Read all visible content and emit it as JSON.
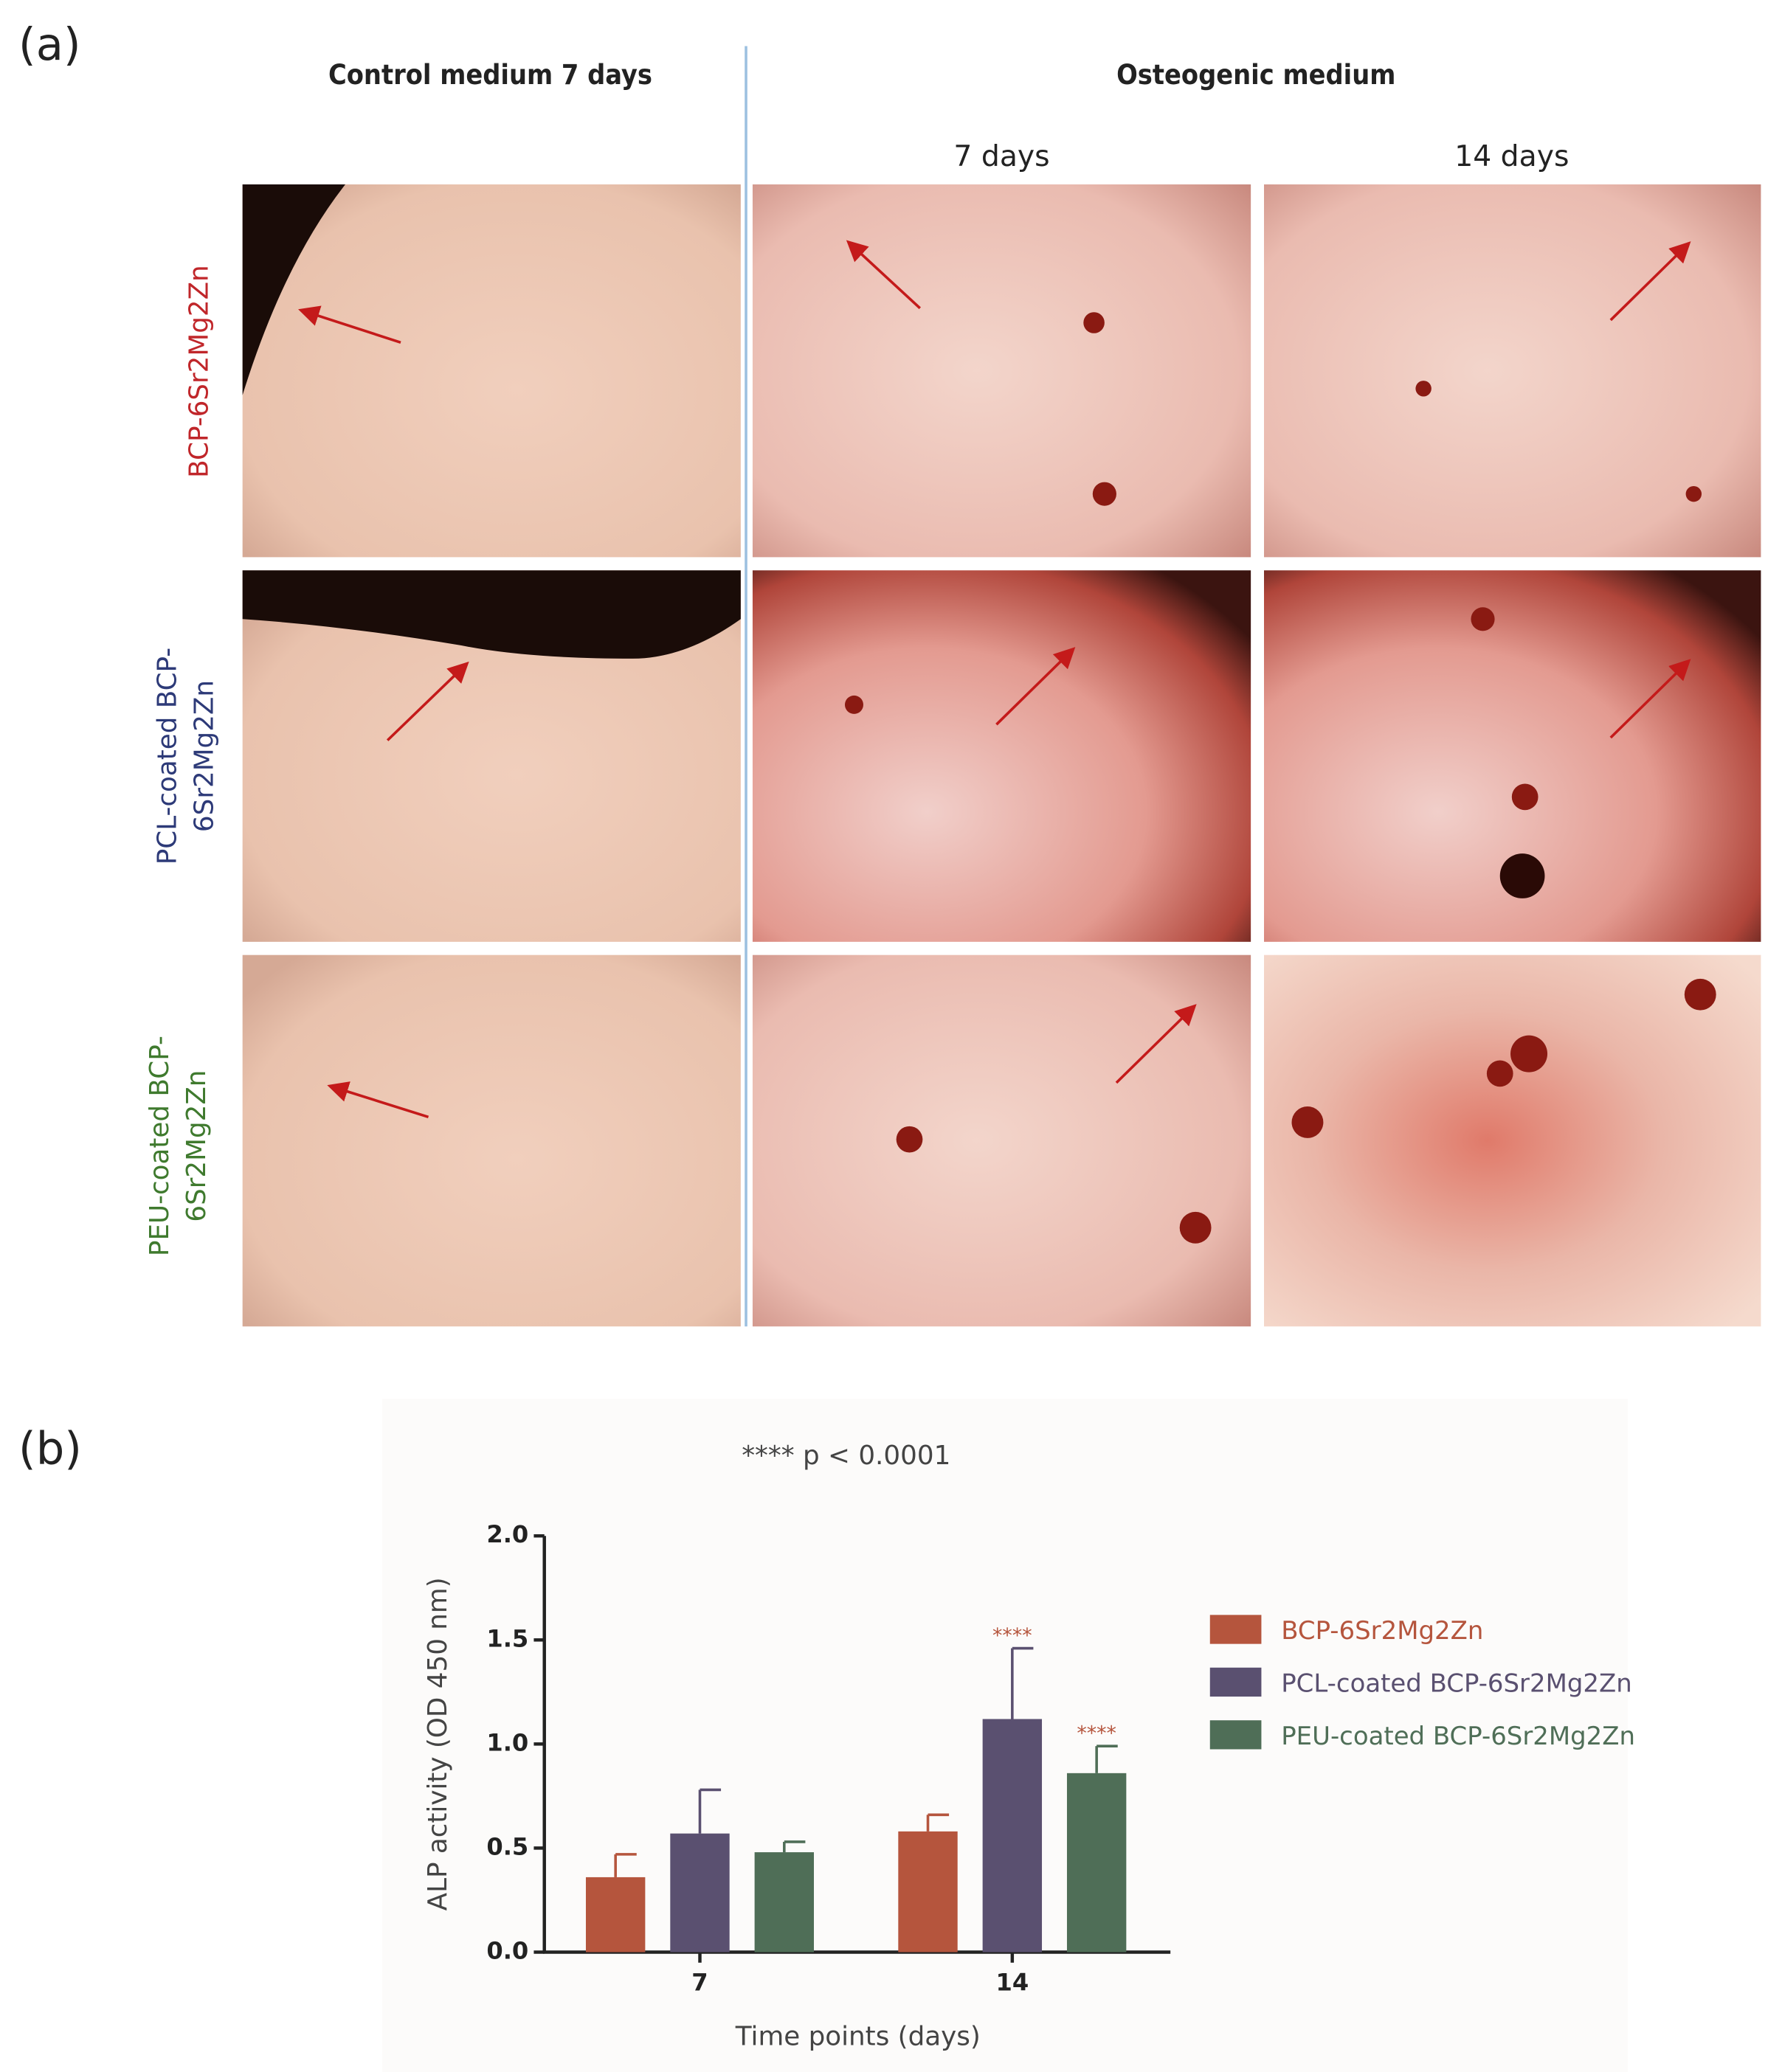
{
  "panel_a": {
    "label": "(a)",
    "column_headers": [
      "Control medium 7 days",
      "Osteogenic medium"
    ],
    "sub_headers": [
      "7 days",
      "14 days"
    ],
    "row_labels": [
      [
        "BCP-6Sr2Mg2Zn"
      ],
      [
        "PCL-coated BCP-",
        "6Sr2Mg2Zn"
      ],
      [
        "PEU-coated BCP-",
        "6Sr2Mg2Zn"
      ]
    ]
  },
  "chart_data": {
    "type": "bar",
    "panel_label": "(b)",
    "annotation": "**** p < 0.0001",
    "xlabel": "Time points (days)",
    "ylabel": "ALP activity (OD 450 nm)",
    "categories": [
      "7",
      "14"
    ],
    "ylim": [
      0,
      2
    ],
    "yticks": [
      {
        "value": 0,
        "label": "0.0"
      },
      {
        "value": 0.5,
        "label": "0.5"
      },
      {
        "value": 1,
        "label": "1.0"
      },
      {
        "value": 1.5,
        "label": "1.5"
      },
      {
        "value": 2,
        "label": "2.0"
      }
    ],
    "series": [
      {
        "name": "BCP-6Sr2Mg2Zn",
        "color": "#b5553d",
        "values": [
          0.36,
          0.58
        ],
        "errors": [
          0.11,
          0.08
        ],
        "significance": [
          null,
          null
        ]
      },
      {
        "name": "PCL-coated BCP-6Sr2Mg2Zn",
        "color": "#5a5070",
        "values": [
          0.57,
          1.12
        ],
        "errors": [
          0.21,
          0.34
        ],
        "significance": [
          null,
          "****"
        ]
      },
      {
        "name": "PEU-coated BCP-6Sr2Mg2Zn",
        "color": "#4f6e57",
        "values": [
          0.48,
          0.86
        ],
        "errors": [
          0.05,
          0.13
        ],
        "significance": [
          null,
          "****"
        ]
      }
    ]
  }
}
